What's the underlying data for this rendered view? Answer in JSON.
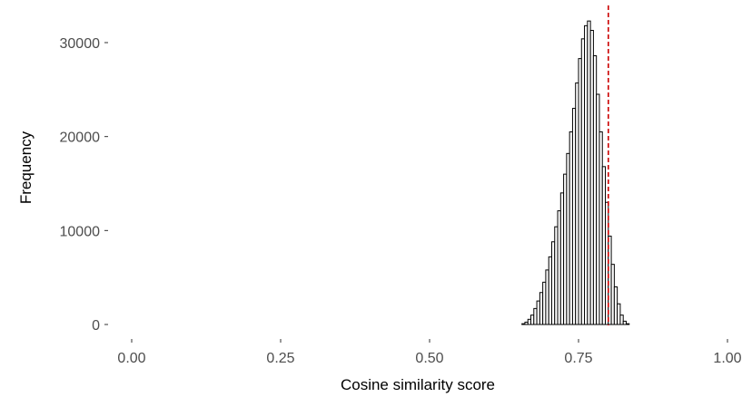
{
  "chart_data": {
    "type": "bar",
    "xlabel": "Cosine similarity score",
    "ylabel": "Frequency",
    "xlim": [
      -0.05,
      1.05
    ],
    "ylim": [
      0,
      33000
    ],
    "grid": false,
    "x_ticks": [
      {
        "value": 0.0,
        "label": "0.00"
      },
      {
        "value": 0.25,
        "label": "0.25"
      },
      {
        "value": 0.5,
        "label": "0.50"
      },
      {
        "value": 0.75,
        "label": "0.75"
      },
      {
        "value": 1.0,
        "label": "1.00"
      }
    ],
    "y_ticks": [
      {
        "value": 0,
        "label": "0"
      },
      {
        "value": 10000,
        "label": "10000"
      },
      {
        "value": 20000,
        "label": "20000"
      },
      {
        "value": 30000,
        "label": "30000"
      }
    ],
    "bin_width": 0.005,
    "bins": [
      [
        0.655,
        80
      ],
      [
        0.66,
        250
      ],
      [
        0.665,
        550
      ],
      [
        0.67,
        1000
      ],
      [
        0.675,
        1700
      ],
      [
        0.68,
        2500
      ],
      [
        0.685,
        3400
      ],
      [
        0.69,
        4500
      ],
      [
        0.695,
        5800
      ],
      [
        0.7,
        7200
      ],
      [
        0.705,
        8800
      ],
      [
        0.71,
        10400
      ],
      [
        0.715,
        12100
      ],
      [
        0.72,
        14000
      ],
      [
        0.725,
        16000
      ],
      [
        0.73,
        18200
      ],
      [
        0.735,
        20500
      ],
      [
        0.74,
        23000
      ],
      [
        0.745,
        25700
      ],
      [
        0.75,
        28300
      ],
      [
        0.755,
        30400
      ],
      [
        0.76,
        31800
      ],
      [
        0.765,
        32300
      ],
      [
        0.77,
        31300
      ],
      [
        0.775,
        28600
      ],
      [
        0.78,
        24500
      ],
      [
        0.785,
        20500
      ],
      [
        0.79,
        16800
      ],
      [
        0.795,
        13000
      ],
      [
        0.8,
        9400
      ],
      [
        0.805,
        6400
      ],
      [
        0.81,
        4000
      ],
      [
        0.815,
        2200
      ],
      [
        0.82,
        1000
      ],
      [
        0.825,
        350
      ],
      [
        0.83,
        80
      ]
    ],
    "threshold": {
      "x": 0.8,
      "color": "#cc0000",
      "style": "dashed"
    },
    "colors": {
      "bar_fill": "#ffffff",
      "bar_stroke": "#000000",
      "background": "#ffffff"
    }
  }
}
